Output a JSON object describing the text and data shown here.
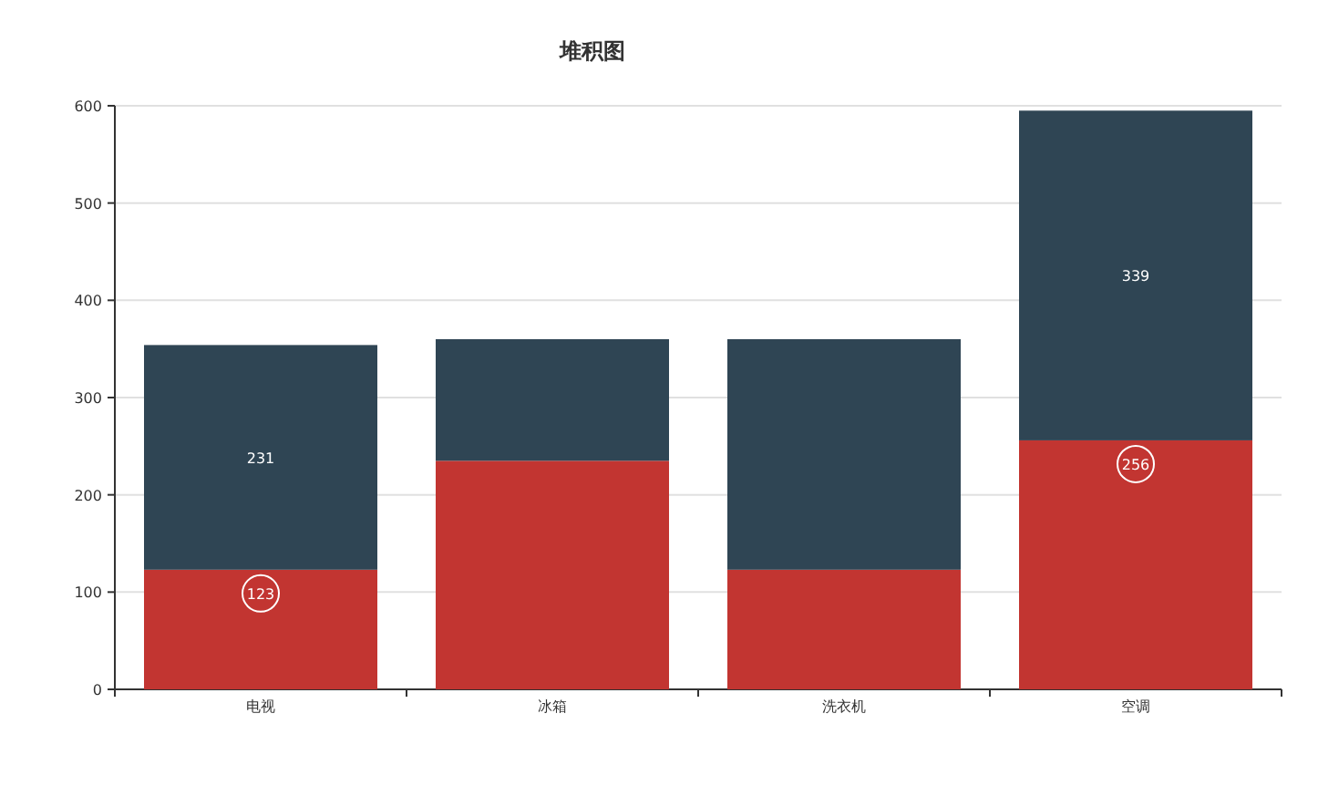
{
  "chart_data": {
    "type": "bar",
    "title": "堆积图",
    "stacked": true,
    "categories": [
      "电视",
      "冰箱",
      "洗衣机",
      "空调"
    ],
    "series": [
      {
        "color": "#c23531",
        "values": [
          123,
          235,
          123,
          256
        ],
        "value_labels": [
          "123",
          null,
          null,
          "256"
        ]
      },
      {
        "color": "#2f4554",
        "values": [
          231,
          125,
          237,
          339
        ],
        "value_labels": [
          "231",
          null,
          null,
          "339"
        ]
      }
    ],
    "ylim": [
      0,
      600
    ],
    "yticks": [
      0,
      100,
      200,
      300,
      400,
      500,
      600
    ],
    "grid": "y"
  }
}
